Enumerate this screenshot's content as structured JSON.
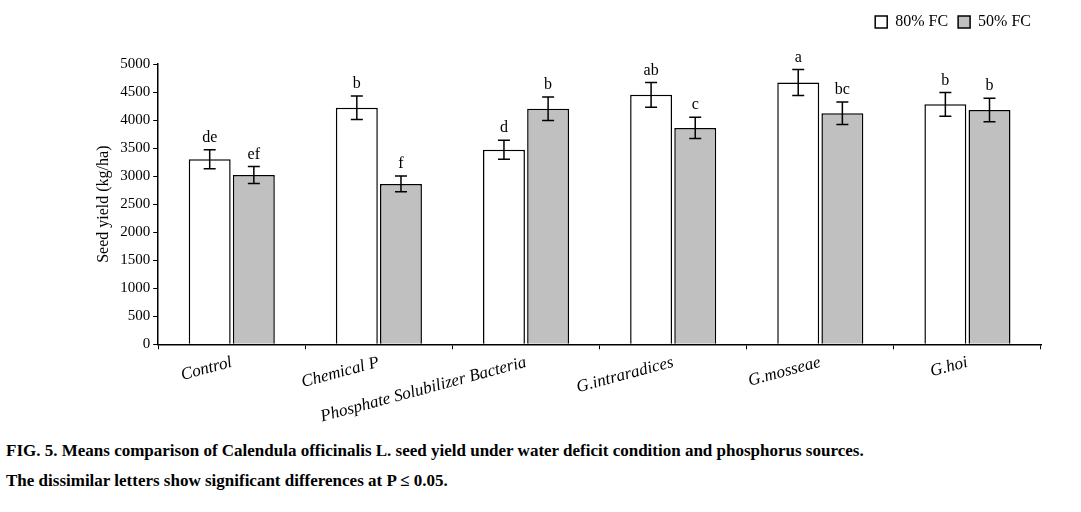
{
  "chart_data": {
    "type": "bar",
    "y_label": "Seed yield (kg/ha)",
    "categories": [
      "Control",
      "Chemical P",
      "Phosphate Solubilizer Bacteria",
      "G.intraradices",
      "G.mosseae",
      "G.hoi"
    ],
    "series": [
      {
        "name": "80% FC",
        "color": "#ffffff",
        "values": [
          3300,
          4220,
          3470,
          4450,
          4670,
          4280
        ],
        "errors": [
          170,
          210,
          170,
          220,
          230,
          210
        ],
        "letters": [
          "de",
          "b",
          "d",
          "ab",
          "a",
          "b"
        ]
      },
      {
        "name": "50% FC",
        "color": "#c0c0c0",
        "values": [
          3020,
          2860,
          4200,
          3860,
          4120,
          4180
        ],
        "errors": [
          150,
          140,
          210,
          190,
          200,
          210
        ],
        "letters": [
          "ef",
          "f",
          "b",
          "c",
          "bc",
          "b"
        ]
      }
    ],
    "ylim": [
      0,
      5000
    ],
    "yticks": [
      0,
      500,
      1000,
      1500,
      2000,
      2500,
      3000,
      3500,
      4000,
      4500,
      5000
    ],
    "grid": false,
    "legend": "top-right",
    "caption": [
      "FIG. 5. Means comparison of Calendula officinalis L. seed yield under water deficit condition and phosphorus sources.",
      "The dissimilar letters show significant differences at P ≤ 0.05."
    ]
  }
}
